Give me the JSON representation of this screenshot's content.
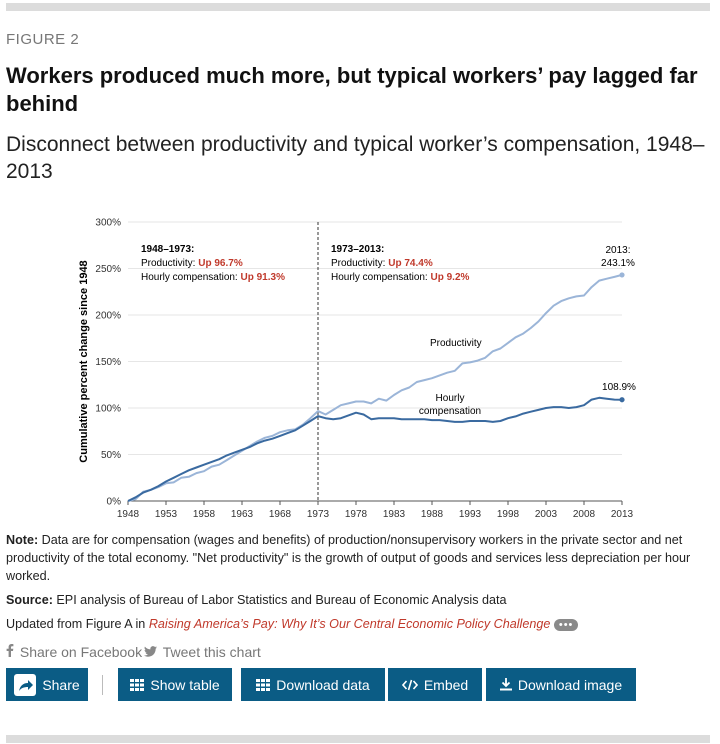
{
  "figure_label": "FIGURE 2",
  "title": "Workers produced much more, but typical workers’ pay lagged far behind",
  "subtitle": "Disconnect between productivity and typical worker’s compensation, 1948–2013",
  "colors": {
    "productivity": "#9bb5d8",
    "compensation": "#3a6aa0",
    "accent_red": "#c0392b",
    "button": "#0b5c85"
  },
  "chart_data": {
    "type": "line",
    "ylabel": "Cumulative percent change since 1948",
    "ylim": [
      0,
      300
    ],
    "yticks": [
      "0%",
      "50%",
      "100%",
      "150%",
      "200%",
      "250%",
      "300%"
    ],
    "xlim": [
      1948,
      2013
    ],
    "xticks": [
      "1948",
      "1953",
      "1958",
      "1963",
      "1968",
      "1973",
      "1978",
      "1983",
      "1988",
      "1993",
      "1998",
      "2003",
      "2008",
      "2013"
    ],
    "divider_year": 1973,
    "series": [
      {
        "name": "Productivity",
        "x": [
          1948,
          1949,
          1950,
          1951,
          1952,
          1953,
          1954,
          1955,
          1956,
          1957,
          1958,
          1959,
          1960,
          1961,
          1962,
          1963,
          1964,
          1965,
          1966,
          1967,
          1968,
          1969,
          1970,
          1971,
          1972,
          1973,
          1974,
          1975,
          1976,
          1977,
          1978,
          1979,
          1980,
          1981,
          1982,
          1983,
          1984,
          1985,
          1986,
          1987,
          1988,
          1989,
          1990,
          1991,
          1992,
          1993,
          1994,
          1995,
          1996,
          1997,
          1998,
          1999,
          2000,
          2001,
          2002,
          2003,
          2004,
          2005,
          2006,
          2007,
          2008,
          2009,
          2010,
          2011,
          2012,
          2013
        ],
        "values": [
          0,
          2,
          10,
          12,
          15,
          19,
          20,
          25,
          26,
          30,
          32,
          37,
          39,
          44,
          49,
          54,
          59,
          64,
          68,
          70,
          74,
          76,
          77,
          82,
          89,
          96.7,
          93,
          98,
          103,
          105,
          107,
          107,
          105,
          110,
          108,
          114,
          119,
          122,
          128,
          130,
          132,
          135,
          138,
          140,
          148,
          149,
          151,
          154,
          161,
          164,
          170,
          176,
          180,
          186,
          193,
          202,
          210,
          215,
          218,
          220,
          221,
          230,
          237,
          239,
          241,
          243.1
        ]
      },
      {
        "name": "Hourly compensation",
        "x": [
          1948,
          1949,
          1950,
          1951,
          1952,
          1953,
          1954,
          1955,
          1956,
          1957,
          1958,
          1959,
          1960,
          1961,
          1962,
          1963,
          1964,
          1965,
          1966,
          1967,
          1968,
          1969,
          1970,
          1971,
          1972,
          1973,
          1974,
          1975,
          1976,
          1977,
          1978,
          1979,
          1980,
          1981,
          1982,
          1983,
          1984,
          1985,
          1986,
          1987,
          1988,
          1989,
          1990,
          1991,
          1992,
          1993,
          1994,
          1995,
          1996,
          1997,
          1998,
          1999,
          2000,
          2001,
          2002,
          2003,
          2004,
          2005,
          2006,
          2007,
          2008,
          2009,
          2010,
          2011,
          2012,
          2013
        ],
        "values": [
          0,
          4,
          9,
          12,
          16,
          21,
          25,
          29,
          33,
          36,
          39,
          42,
          45,
          49,
          52,
          55,
          58,
          62,
          65,
          67,
          70,
          73,
          76,
          81,
          86,
          91.3,
          89,
          88,
          89,
          92,
          95,
          93,
          88,
          89,
          89,
          89,
          88,
          88,
          88,
          88,
          87,
          87,
          86,
          85,
          85,
          86,
          86,
          86,
          85,
          86,
          89,
          91,
          94,
          96,
          98,
          100,
          101,
          101,
          100,
          101,
          103,
          109,
          111,
          110,
          109,
          108.9
        ]
      }
    ],
    "annotations": {
      "period1_head": "1948–1973:",
      "period1_prod_label": "Productivity: ",
      "period1_prod_value": "Up 96.7%",
      "period1_comp_label": "Hourly compensation: ",
      "period1_comp_value": "Up 91.3%",
      "period2_head": "1973–2013:",
      "period2_prod_label": "Productivity: ",
      "period2_prod_value": "Up 74.4%",
      "period2_comp_label": "Hourly compensation: ",
      "period2_comp_value": "Up 9.2%",
      "prod_series_label": "Productivity",
      "comp_series_label_1": "Hourly",
      "comp_series_label_2": "compensation",
      "end_prod_year": "2013:",
      "end_prod_value": "243.1%",
      "end_comp_value": "108.9%"
    }
  },
  "notes": {
    "note_label": "Note:",
    "note_text": " Data are for compensation (wages and benefits) of production/nonsupervisory workers in the private sector and net productivity of the total economy. \"Net productivity\" is the growth of output of goods and services less depreciation per hour worked.",
    "source_label": "Source:",
    "source_text": " EPI analysis of Bureau of Labor Statistics and Bureau of Economic Analysis data",
    "updated_text": "Updated from Figure A in ",
    "updated_link": "Raising America’s Pay: Why It’s Our Central Economic Policy Challenge",
    "more_label": "•••"
  },
  "social": {
    "facebook": "Share on Facebook",
    "tweet": "Tweet this chart"
  },
  "buttons": {
    "share": "Share",
    "show_table": "Show table",
    "download_data": "Download data",
    "embed": "Embed",
    "download_image": "Download image"
  }
}
